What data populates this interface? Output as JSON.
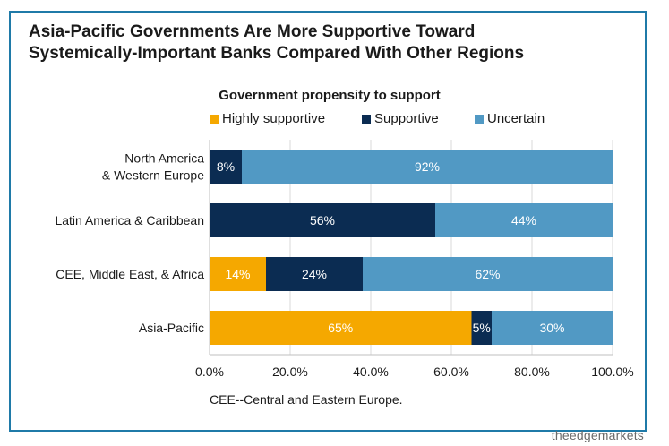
{
  "title_line1": "Asia-Pacific Governments Are More Supportive Toward",
  "title_line2": "Systemically-Important Banks Compared With Other Regions",
  "footnote": "CEE--Central and Eastern Europe.",
  "watermark": "theedgemarkets",
  "chart_data": {
    "type": "bar",
    "orientation": "horizontal",
    "stacked": true,
    "title": "Government propensity to support",
    "categories": [
      [
        "North America",
        "& Western Europe"
      ],
      [
        "Latin America & Caribbean"
      ],
      [
        "CEE, Middle East, & Africa"
      ],
      [
        "Asia-Pacific"
      ]
    ],
    "series": [
      {
        "name": "Highly supportive",
        "color": "#f5a800",
        "values": [
          0,
          0,
          14,
          65
        ],
        "labels": [
          "",
          "",
          "14%",
          "65%"
        ]
      },
      {
        "name": "Supportive",
        "color": "#0b2c52",
        "values": [
          8,
          56,
          24,
          5
        ],
        "labels": [
          "8%",
          "56%",
          "24%",
          "5%"
        ]
      },
      {
        "name": "Uncertain",
        "color": "#5199c4",
        "values": [
          92,
          44,
          62,
          30
        ],
        "labels": [
          "92%",
          "44%",
          "62%",
          "30%"
        ]
      }
    ],
    "xlim": [
      0,
      100
    ],
    "xticks": [
      0,
      20,
      40,
      60,
      80,
      100
    ],
    "xtick_labels": [
      "0.0%",
      "20.0%",
      "40.0%",
      "60.0%",
      "80.0%",
      "100.0%"
    ],
    "grid": true,
    "legend_position": "top"
  }
}
